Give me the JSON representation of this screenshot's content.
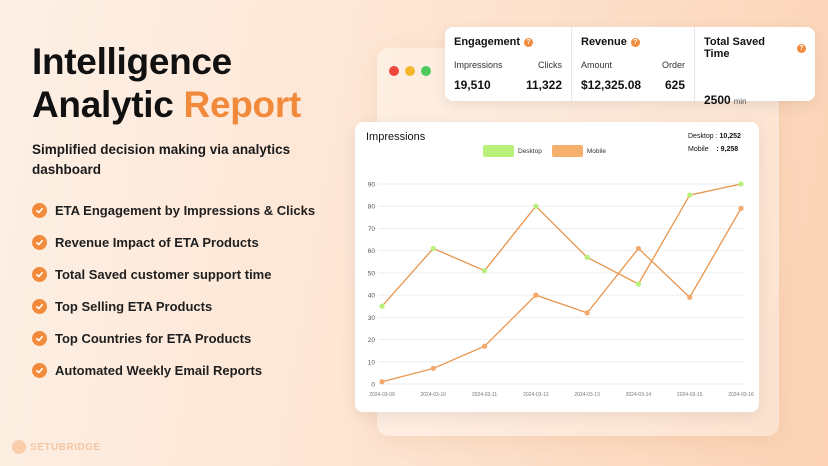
{
  "hero": {
    "title_line1": "Intelligence",
    "title_line2a": "Analytic",
    "title_line2b": "Report",
    "subtitle": "Simplified decision making via analytics dashboard"
  },
  "features": [
    "ETA Engagement by Impressions & Clicks",
    "Revenue Impact of ETA Products",
    "Total Saved customer support time",
    "Top Selling ETA Products",
    "Top Countries for ETA Products",
    "Automated Weekly Email Reports"
  ],
  "brand": {
    "name": "SETUBRIDGE"
  },
  "window": {
    "dot_colors": [
      "#f0463c",
      "#f5b72b",
      "#4cc95a"
    ]
  },
  "stats": {
    "engagement": {
      "title": "Engagement",
      "label1": "Impressions",
      "label2": "Clicks",
      "value1": "19,510",
      "value2": "11,322"
    },
    "revenue": {
      "title": "Revenue",
      "label1": "Amount",
      "label2": "Order",
      "value1": "$12,325.08",
      "value2": "625"
    },
    "saved_time": {
      "title": "Total Saved Time",
      "value": "2500",
      "unit": "min"
    }
  },
  "chart_data": {
    "type": "line",
    "title": "Impressions",
    "legend": [
      "Desktop",
      "Mobile"
    ],
    "legend_placement": "top-center",
    "totals": {
      "desktop_label": "Desktop :",
      "desktop_value": "10,252",
      "mobile_label": "Mobile",
      "mobile_value": ": 9,258"
    },
    "x": [
      "2024-03-09",
      "2024-03-10",
      "2024-03-11",
      "2024-03-12",
      "2024-03-13",
      "2024-03-14",
      "2024-03-15",
      "2024-03-16"
    ],
    "series": [
      {
        "name": "Desktop",
        "values": [
          35,
          61,
          51,
          80,
          57,
          45,
          85,
          90
        ],
        "marker": "#b8f07a"
      },
      {
        "name": "Mobile",
        "values": [
          1,
          7,
          17,
          40,
          32,
          61,
          39,
          79
        ],
        "marker": "#f5a86b"
      }
    ],
    "line_color": "#e8954d",
    "y_ticks": [
      0,
      10,
      20,
      30,
      40,
      50,
      60,
      70,
      80,
      90
    ],
    "ylim": [
      0,
      90
    ],
    "grid": "horizontal",
    "colors": {
      "desktop": "#b8f07a",
      "mobile": "#f5b06e"
    }
  }
}
